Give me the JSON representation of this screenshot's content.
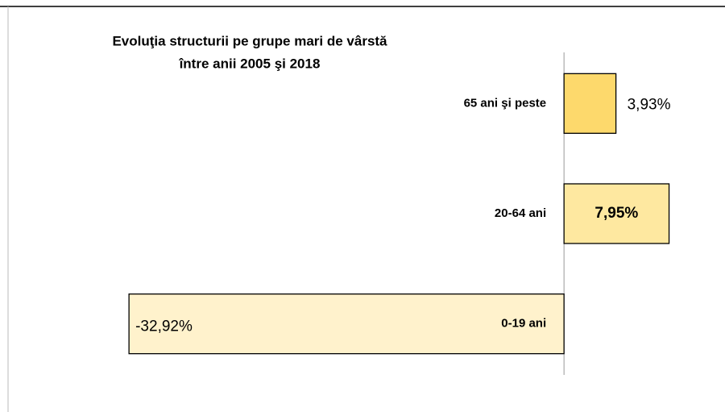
{
  "chart_data": {
    "type": "hbar",
    "title": [
      "Evoluţia structurii pe grupe mari de vârstă",
      "între anii 2005 şi 2018"
    ],
    "categories": [
      "65 ani şi peste",
      "20-64 ani",
      "0-19 ani"
    ],
    "values": [
      3.93,
      7.95,
      -32.92
    ],
    "value_labels": [
      "3,93%",
      "7,95%",
      "-32,92%"
    ],
    "colors": [
      "#fdd96c",
      "#fee8a0",
      "#fff2cc"
    ],
    "xlim": [
      -35,
      12
    ]
  }
}
